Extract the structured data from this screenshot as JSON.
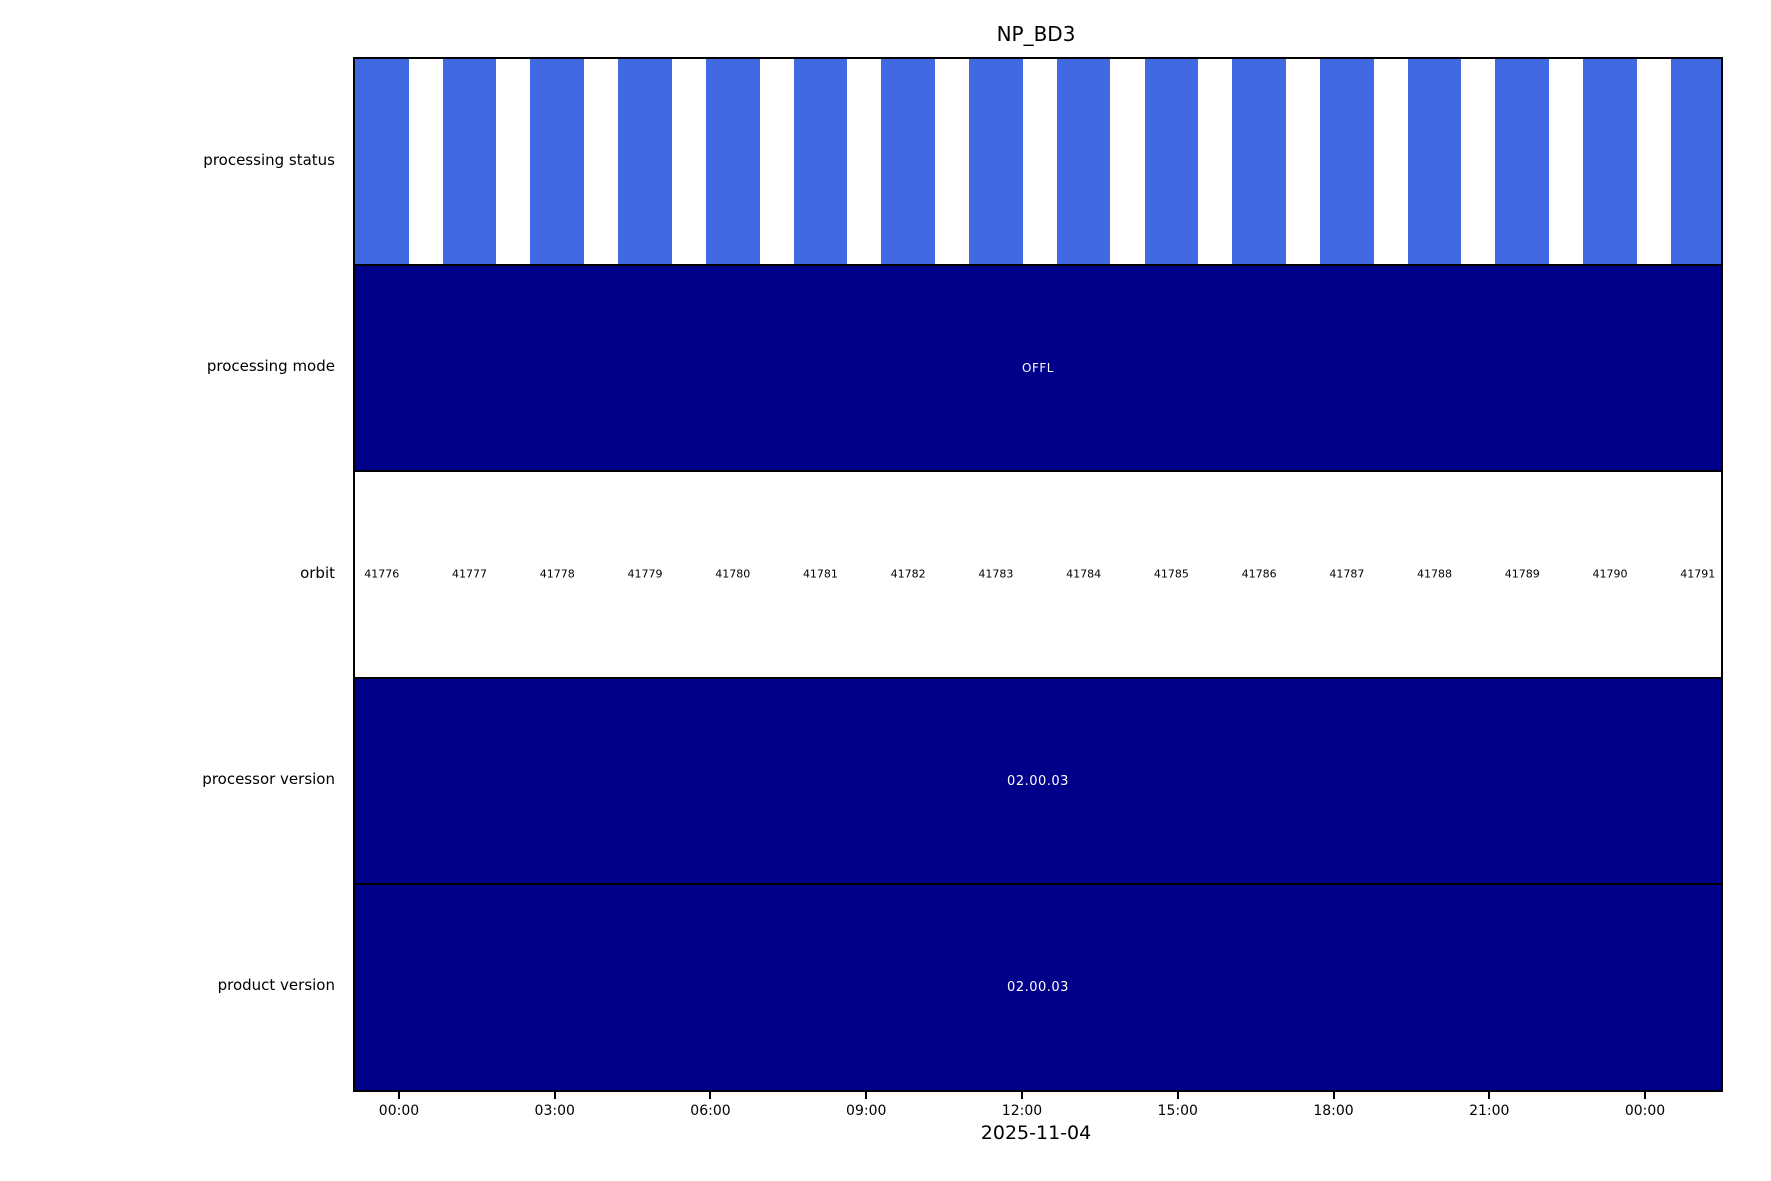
{
  "title": "NP_BD3",
  "colors": {
    "status_bar_blue": "#4169e1",
    "band_navy": "#00008b",
    "band_text_white": "#ffffff",
    "axis_black": "#000000"
  },
  "row_labels": [
    "processing status",
    "processing mode",
    "orbit",
    "processor version",
    "product version"
  ],
  "bands": {
    "processing_mode": "OFFL",
    "processor_version": "02.00.03",
    "product_version": "02.00.03"
  },
  "xaxis": {
    "tick_labels": [
      "00:00",
      "03:00",
      "06:00",
      "09:00",
      "12:00",
      "15:00",
      "18:00",
      "21:00",
      "00:00"
    ],
    "date_label": "2025-11-04"
  },
  "chart_data": {
    "type": "bar",
    "subtype": "timeline-status-bands",
    "title": "NP_BD3",
    "xlabel": "2025-11-04",
    "x_tick_labels": [
      "00:00",
      "03:00",
      "06:00",
      "09:00",
      "12:00",
      "15:00",
      "18:00",
      "21:00",
      "00:00"
    ],
    "x_tick_interval_hours": 3,
    "row_categories": [
      "processing status",
      "processing mode",
      "orbit",
      "processor version",
      "product version"
    ],
    "orbits": [
      41776,
      41777,
      41778,
      41779,
      41780,
      41781,
      41782,
      41783,
      41784,
      41785,
      41786,
      41787,
      41788,
      41789,
      41790,
      41791
    ],
    "processing_status": {
      "bars_count": 16,
      "note": "one blue bar per orbit, gaps between orbits",
      "bar_color": "#4169e1"
    },
    "processing_mode": "OFFL",
    "processor_version": "02.00.03",
    "product_version": "02.00.03",
    "grid": false,
    "legend": null
  }
}
